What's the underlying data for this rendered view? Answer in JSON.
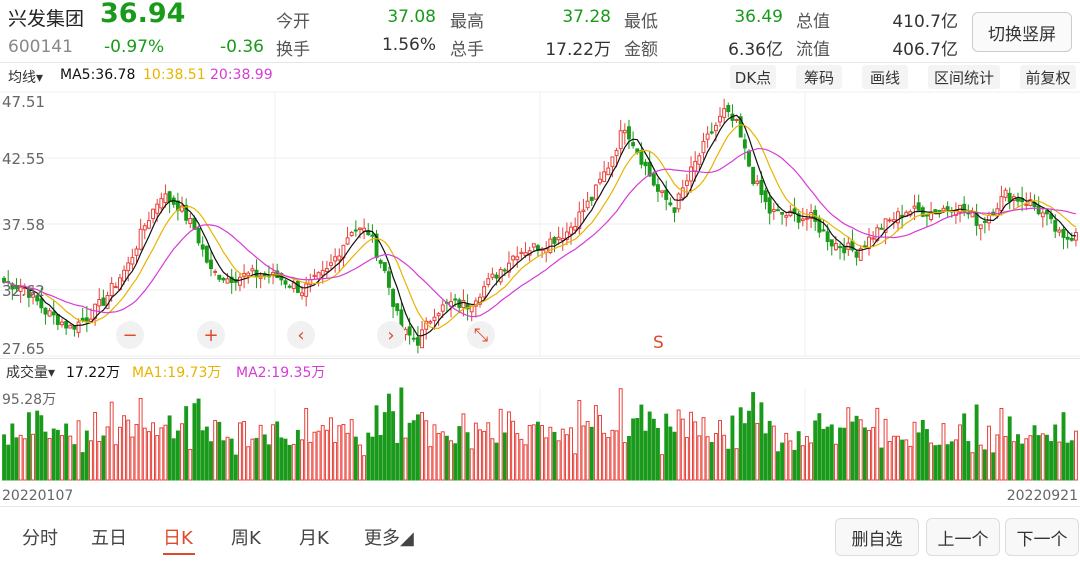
{
  "header": {
    "name": "兴发集团",
    "price": "36.94",
    "code": "600141",
    "pct": "-0.97%",
    "chg": "-0.36",
    "quote": [
      {
        "label": "今开",
        "value": "37.08",
        "green": true
      },
      {
        "label": "最高",
        "value": "37.28",
        "green": true
      },
      {
        "label": "最低",
        "value": "36.49",
        "green": true
      },
      {
        "label": "总值",
        "value": "410.7亿",
        "green": false
      },
      {
        "label": "换手",
        "value": "1.56%",
        "green": false
      },
      {
        "label": "总手",
        "value": "17.22万",
        "green": false
      },
      {
        "label": "金额",
        "value": "6.36亿",
        "green": false
      },
      {
        "label": "流值",
        "value": "406.7亿",
        "green": false
      }
    ],
    "switch_label": "切换竖屏"
  },
  "ma_bar": {
    "selector": "均线▾",
    "ma5": "MA5:36.78",
    "ma10": "10:38.51",
    "ma20": "20:38.99"
  },
  "tools": [
    "DK点",
    "筹码",
    "画线",
    "区间统计",
    "前复权"
  ],
  "volume_bar": {
    "selector": "成交量▾",
    "vol": "17.22万",
    "ma1": "MA1:19.73万",
    "ma2": "MA2:19.35万"
  },
  "controls": {
    "minus": "−",
    "plus": "+",
    "left": "‹",
    "right": "›",
    "shrink": "⤡",
    "marker": "S"
  },
  "tabs": [
    {
      "label": "分时",
      "active": false
    },
    {
      "label": "五日",
      "active": false
    },
    {
      "label": "日K",
      "active": true
    },
    {
      "label": "周K",
      "active": false
    },
    {
      "label": "月K",
      "active": false
    },
    {
      "label": "更多◢",
      "active": false
    }
  ],
  "bottom_buttons": [
    "删自选",
    "上一个",
    "下一个"
  ],
  "colors": {
    "up": "#e8413a",
    "down": "#1a9a1a",
    "ma5": "#111111",
    "ma10": "#e8b400",
    "ma20": "#d63bd6"
  },
  "chart_data": {
    "type": "candlestick",
    "price_ticks": [
      "47.51",
      "42.55",
      "37.58",
      "32.62",
      "27.65"
    ],
    "ylim": [
      27.65,
      47.51
    ],
    "volume_max_label": "95.28万",
    "volume_max": 95.28,
    "x_start_label": "20220107",
    "x_end_label": "20220921",
    "close_anchors": [
      [
        0,
        33.2
      ],
      [
        5,
        32.8
      ],
      [
        10,
        31.0
      ],
      [
        16,
        29.8
      ],
      [
        20,
        30.5
      ],
      [
        24,
        31.8
      ],
      [
        30,
        34.5
      ],
      [
        34,
        37.5
      ],
      [
        38,
        39.8
      ],
      [
        42,
        39.0
      ],
      [
        46,
        37.2
      ],
      [
        50,
        34.0
      ],
      [
        54,
        33.5
      ],
      [
        60,
        33.8
      ],
      [
        66,
        33.6
      ],
      [
        72,
        32.6
      ],
      [
        78,
        34.0
      ],
      [
        84,
        37.2
      ],
      [
        88,
        37.0
      ],
      [
        92,
        34.0
      ],
      [
        96,
        29.5
      ],
      [
        100,
        28.8
      ],
      [
        104,
        31.0
      ],
      [
        108,
        31.6
      ],
      [
        112,
        31.5
      ],
      [
        118,
        33.5
      ],
      [
        124,
        35.5
      ],
      [
        130,
        36.0
      ],
      [
        136,
        37.0
      ],
      [
        142,
        39.5
      ],
      [
        146,
        42.0
      ],
      [
        150,
        45.0
      ],
      [
        154,
        42.5
      ],
      [
        158,
        40.0
      ],
      [
        162,
        38.8
      ],
      [
        166,
        41.5
      ],
      [
        170,
        44.0
      ],
      [
        174,
        46.0
      ],
      [
        177,
        45.0
      ],
      [
        181,
        41.0
      ],
      [
        185,
        38.5
      ],
      [
        190,
        38.2
      ],
      [
        195,
        38.0
      ],
      [
        200,
        36.2
      ],
      [
        206,
        35.5
      ],
      [
        212,
        37.4
      ],
      [
        218,
        38.6
      ],
      [
        224,
        38.5
      ],
      [
        230,
        39.0
      ],
      [
        236,
        37.6
      ],
      [
        242,
        39.8
      ],
      [
        248,
        39.2
      ],
      [
        252,
        38.0
      ],
      [
        256,
        36.3
      ],
      [
        259,
        36.94
      ]
    ]
  }
}
